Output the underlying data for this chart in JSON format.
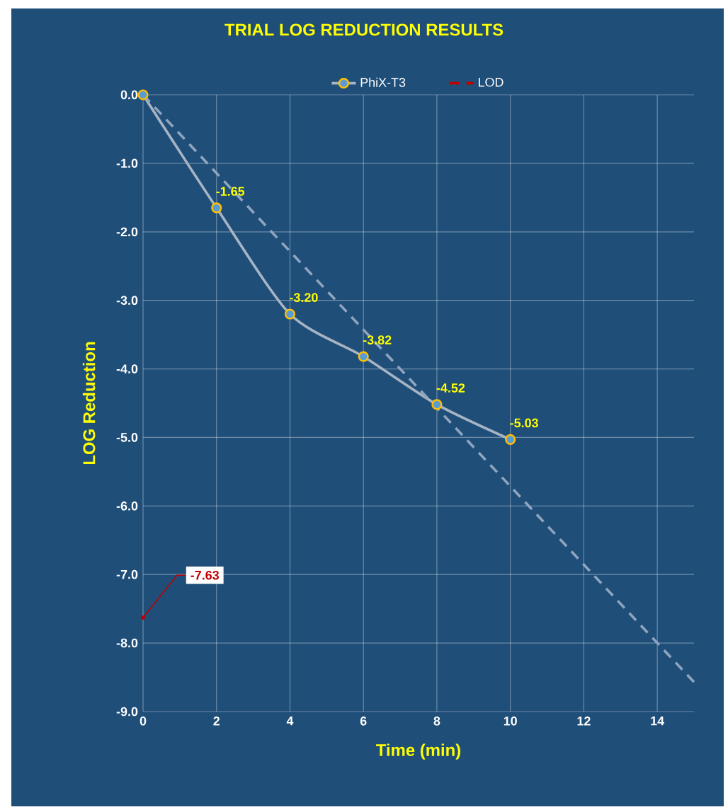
{
  "chart_data": {
    "type": "line",
    "title": "TRIAL LOG REDUCTION  RESULTS",
    "xlabel": "Time (min)",
    "ylabel": "LOG Reduction",
    "series": [
      {
        "name": "PhiX-T3",
        "color": "#a6b4c4",
        "x": [
          0,
          2,
          4,
          6,
          8,
          10
        ],
        "values": [
          0,
          -1.65,
          -3.2,
          -3.82,
          -4.52,
          -5.03
        ],
        "value_labels": [
          null,
          "-1.65",
          "-3.20",
          "-3.82",
          "-4.52",
          "-5.03"
        ],
        "marker": "circle",
        "line_style": "solid"
      },
      {
        "color": "#8fa5bf",
        "x": [
          0,
          15
        ],
        "values": [
          0,
          -8.57
        ],
        "marker": "none",
        "line_style": "dashed"
      },
      {
        "name": "LOD",
        "color": "#c00000",
        "x": [
          0
        ],
        "values": [
          -7.63
        ],
        "value_labels": [
          "-7.63"
        ],
        "marker": "none",
        "line_style": "dashed"
      }
    ],
    "xlim": [
      0,
      15
    ],
    "xticks": [
      0,
      2,
      4,
      6,
      8,
      10,
      12,
      14
    ],
    "ylim": [
      -9,
      0
    ],
    "yticks": [
      {
        "value": 0,
        "label": "0.0"
      },
      {
        "value": -1,
        "label": "-1.0"
      },
      {
        "value": -2,
        "label": "-2.0"
      },
      {
        "value": -3,
        "label": "-3.0"
      },
      {
        "value": -4,
        "label": "-4.0"
      },
      {
        "value": -5,
        "label": "-5.0"
      },
      {
        "value": -6,
        "label": "-6.0"
      },
      {
        "value": -7,
        "label": "-7.0"
      },
      {
        "value": -8,
        "label": "-8.0"
      },
      {
        "value": -9,
        "label": "-9.0"
      }
    ],
    "grid": true,
    "legend": "top"
  }
}
